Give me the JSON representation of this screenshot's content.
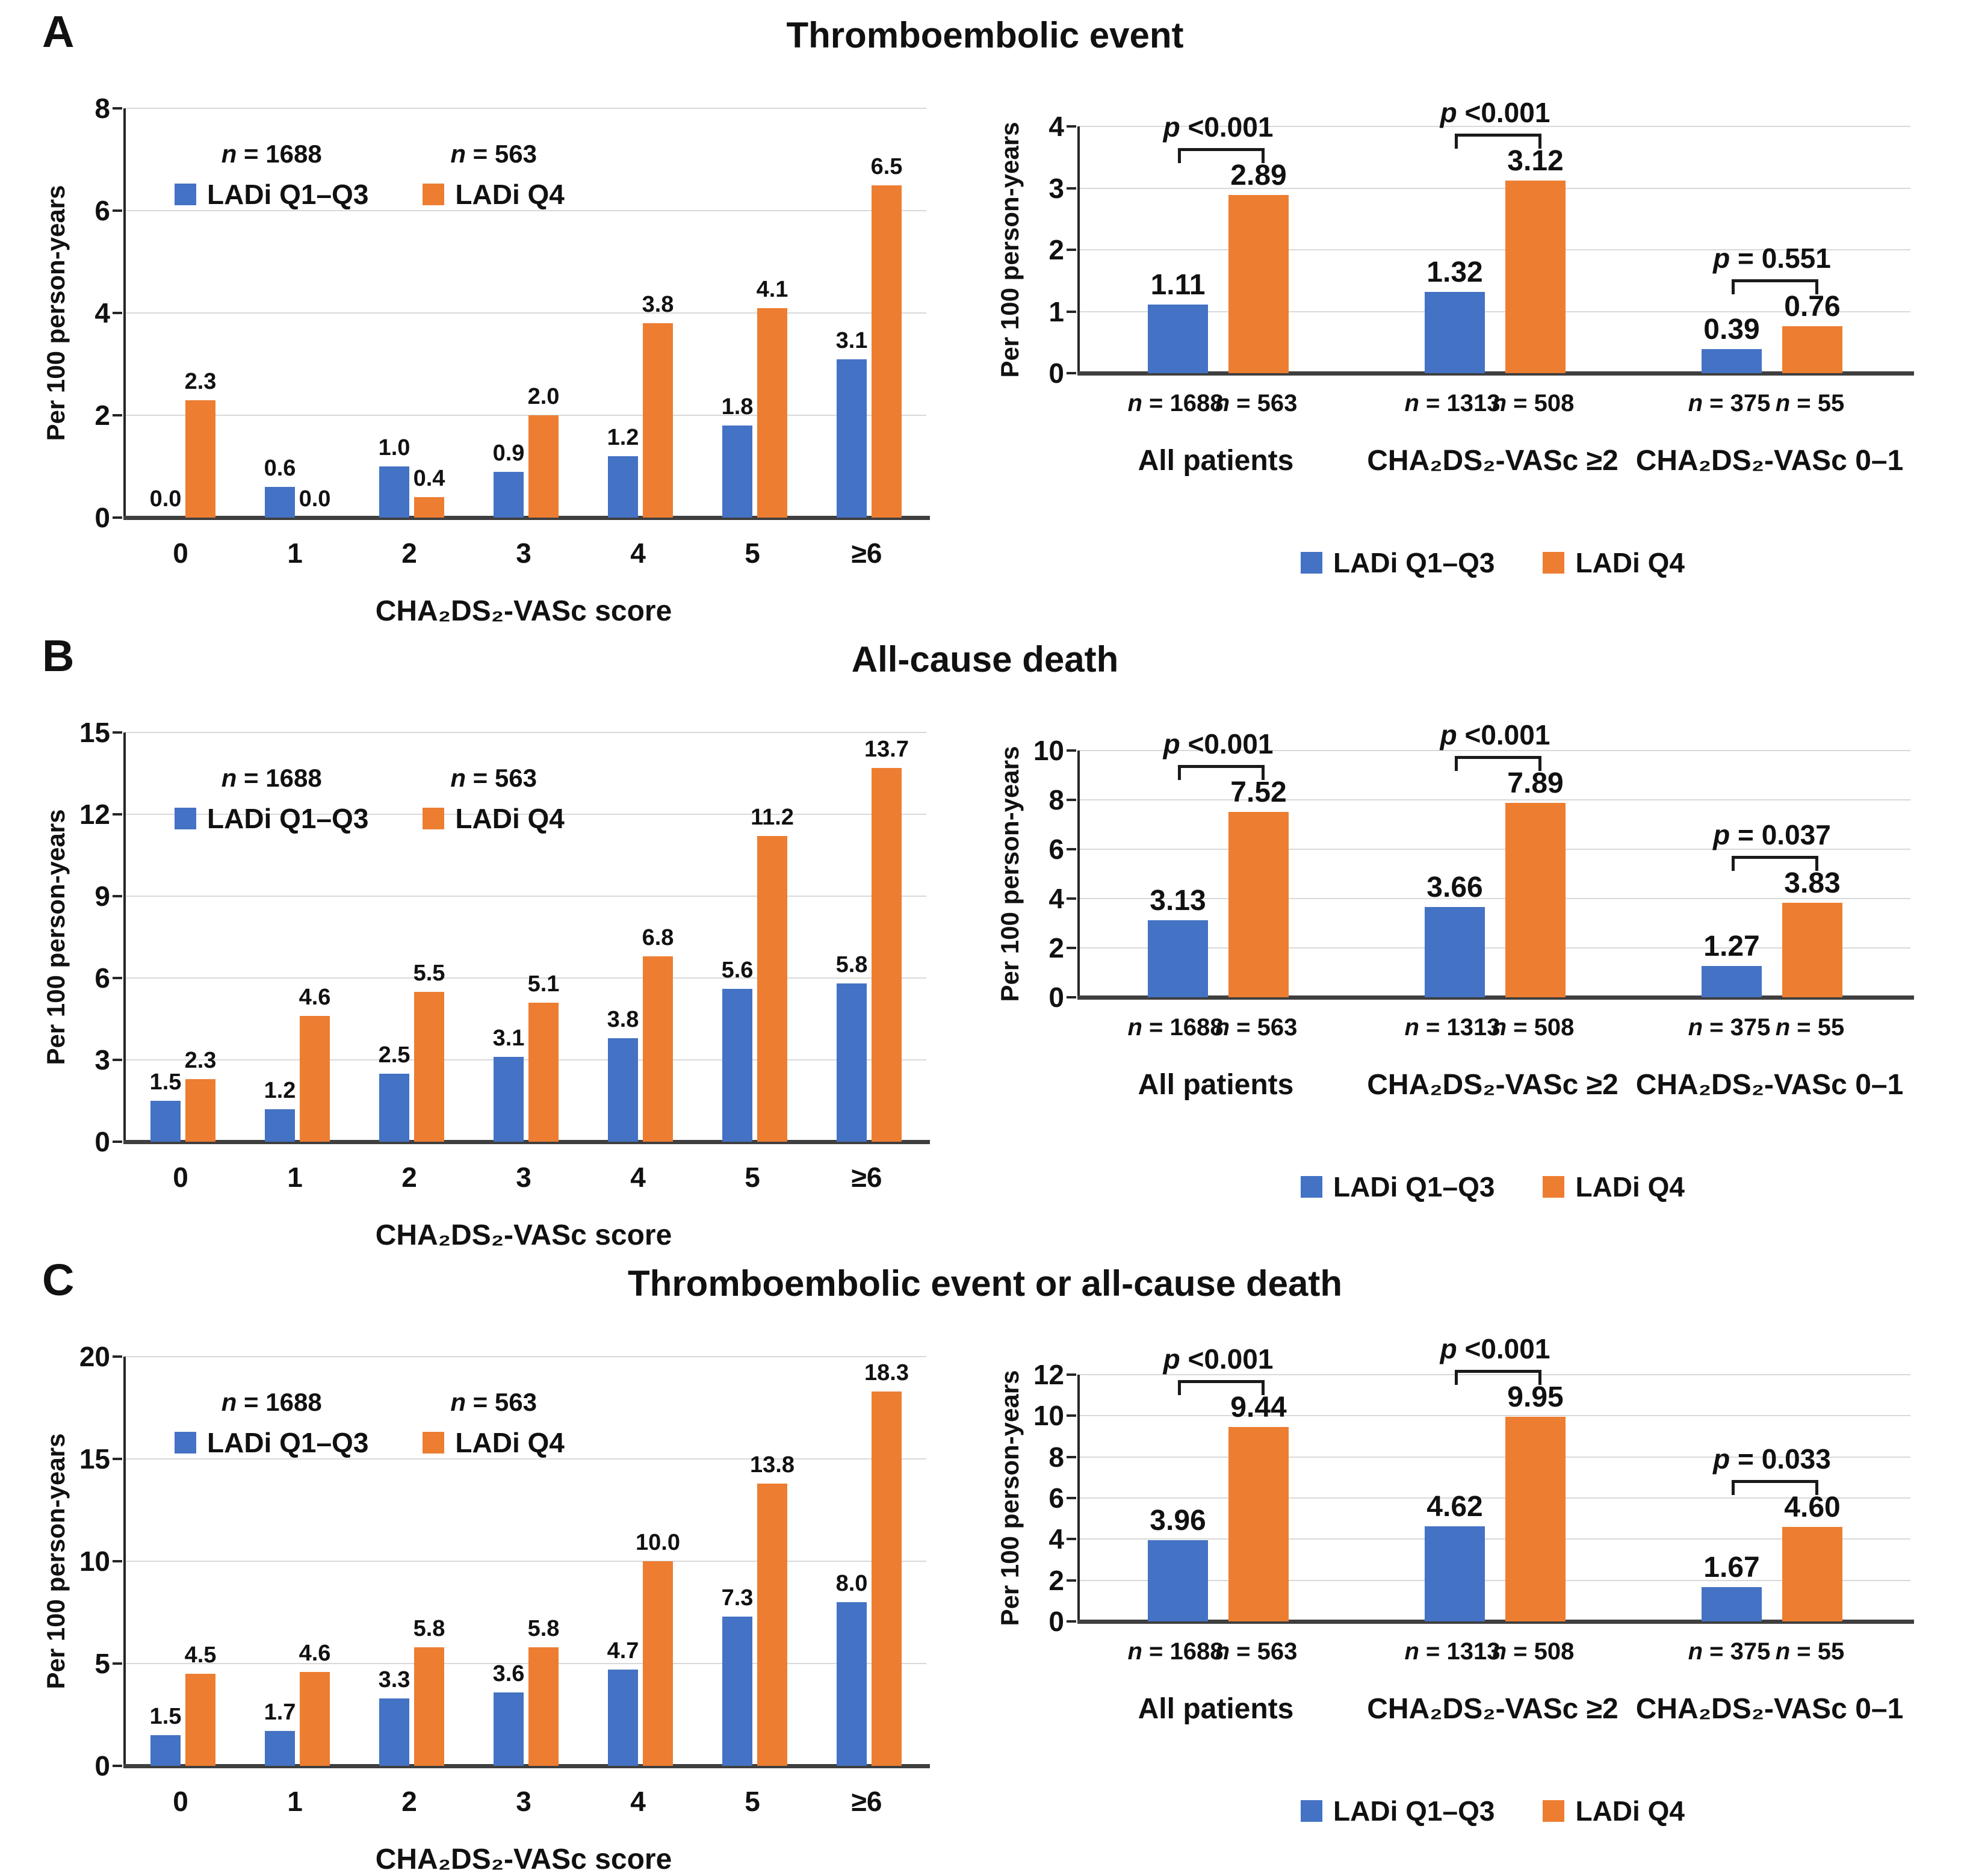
{
  "colors": {
    "blue": "#4472C4",
    "orange": "#ED7D31",
    "grid": "#D9D9D9",
    "axis": "#262626",
    "baseline": "#3F3F3F",
    "text": "#111111"
  },
  "panels": [
    {
      "letter": "A",
      "title": "Thromboembolic event"
    },
    {
      "letter": "B",
      "title": "All-cause death"
    },
    {
      "letter": "C",
      "title": "Thromboembolic event or all-cause death"
    }
  ],
  "chart_data": [
    {
      "kind": "score",
      "type": "bar",
      "panel": "A",
      "title": "Thromboembolic event",
      "ylabel": "Per 100 person-years",
      "xlabel": "CHA₂DS₂-VASc score",
      "categories": [
        "0",
        "1",
        "2",
        "3",
        "4",
        "5",
        "≥6"
      ],
      "ylim": [
        0,
        8
      ],
      "yticks": [
        0,
        2,
        4,
        6,
        8
      ],
      "label_decimals": 1,
      "grid": true,
      "legend_position": "top-inside",
      "legend_n": [
        "n = 1688",
        "n = 563"
      ],
      "series": [
        {
          "name": "LADi Q1–Q3",
          "values": [
            0.0,
            0.6,
            1.0,
            0.9,
            1.2,
            1.8,
            3.1
          ]
        },
        {
          "name": "LADi Q4",
          "values": [
            2.3,
            0.0,
            0.4,
            2.0,
            3.8,
            4.1,
            6.5
          ]
        }
      ]
    },
    {
      "kind": "group",
      "type": "bar",
      "panel": "A",
      "title": "Thromboembolic event",
      "ylabel": "Per 100 person-years",
      "categories": [
        "All patients",
        "CHA₂DS₂-VASc ≥2",
        "CHA₂DS₂-VASc 0–1"
      ],
      "ylim": [
        0,
        4
      ],
      "yticks": [
        0,
        1,
        2,
        3,
        4
      ],
      "label_decimals": 2,
      "grid": true,
      "legend_position": "bottom",
      "series": [
        {
          "name": "LADi Q1–Q3",
          "values": [
            1.11,
            1.32,
            0.39
          ]
        },
        {
          "name": "LADi Q4",
          "values": [
            2.89,
            3.12,
            0.76
          ]
        }
      ],
      "n_labels": [
        [
          "n = 1688",
          "n = 563"
        ],
        [
          "n = 1313",
          "n = 508"
        ],
        [
          "n = 375",
          "n = 55"
        ]
      ],
      "p_labels": [
        "p <0.001",
        "p <0.001",
        "p = 0.551"
      ]
    },
    {
      "kind": "score",
      "type": "bar",
      "panel": "B",
      "title": "All-cause death",
      "ylabel": "Per 100 person-years",
      "xlabel": "CHA₂DS₂-VASc score",
      "categories": [
        "0",
        "1",
        "2",
        "3",
        "4",
        "5",
        "≥6"
      ],
      "ylim": [
        0,
        15
      ],
      "yticks": [
        0,
        3,
        6,
        9,
        12,
        15
      ],
      "label_decimals": 1,
      "grid": true,
      "legend_position": "top-inside",
      "legend_n": [
        "n = 1688",
        "n = 563"
      ],
      "series": [
        {
          "name": "LADi Q1–Q3",
          "values": [
            1.5,
            1.2,
            2.5,
            3.1,
            3.8,
            5.6,
            5.8
          ]
        },
        {
          "name": "LADi Q4",
          "values": [
            2.3,
            4.6,
            5.5,
            5.1,
            6.8,
            11.2,
            13.7
          ]
        }
      ]
    },
    {
      "kind": "group",
      "type": "bar",
      "panel": "B",
      "title": "All-cause death",
      "ylabel": "Per 100 person-years",
      "categories": [
        "All patients",
        "CHA₂DS₂-VASc ≥2",
        "CHA₂DS₂-VASc 0–1"
      ],
      "ylim": [
        0,
        10
      ],
      "yticks": [
        0,
        2,
        4,
        6,
        8,
        10
      ],
      "label_decimals": 2,
      "grid": true,
      "legend_position": "bottom",
      "series": [
        {
          "name": "LADi Q1–Q3",
          "values": [
            3.13,
            3.66,
            1.27
          ]
        },
        {
          "name": "LADi Q4",
          "values": [
            7.52,
            7.89,
            3.83
          ]
        }
      ],
      "n_labels": [
        [
          "n = 1688",
          "n = 563"
        ],
        [
          "n = 1313",
          "n = 508"
        ],
        [
          "n = 375",
          "n = 55"
        ]
      ],
      "p_labels": [
        "p <0.001",
        "p <0.001",
        "p = 0.037"
      ]
    },
    {
      "kind": "score",
      "type": "bar",
      "panel": "C",
      "title": "Thromboembolic event or all-cause death",
      "ylabel": "Per 100 person-years",
      "xlabel": "CHA₂DS₂-VASc score",
      "categories": [
        "0",
        "1",
        "2",
        "3",
        "4",
        "5",
        "≥6"
      ],
      "ylim": [
        0,
        20
      ],
      "yticks": [
        0,
        5,
        10,
        15,
        20
      ],
      "label_decimals": 1,
      "grid": true,
      "legend_position": "top-inside",
      "legend_n": [
        "n = 1688",
        "n = 563"
      ],
      "series": [
        {
          "name": "LADi Q1–Q3",
          "values": [
            1.5,
            1.7,
            3.3,
            3.6,
            4.7,
            7.3,
            8.0
          ]
        },
        {
          "name": "LADi Q4",
          "values": [
            4.5,
            4.6,
            5.8,
            5.8,
            10.0,
            13.8,
            18.3
          ]
        }
      ]
    },
    {
      "kind": "group",
      "type": "bar",
      "panel": "C",
      "title": "Thromboembolic event or all-cause death",
      "ylabel": "Per 100 person-years",
      "categories": [
        "All patients",
        "CHA₂DS₂-VASc ≥2",
        "CHA₂DS₂-VASc 0–1"
      ],
      "ylim": [
        0,
        12
      ],
      "yticks": [
        0,
        2,
        4,
        6,
        8,
        10,
        12
      ],
      "label_decimals": 2,
      "grid": true,
      "legend_position": "bottom",
      "series": [
        {
          "name": "LADi Q1–Q3",
          "values": [
            3.96,
            4.62,
            1.67
          ]
        },
        {
          "name": "LADi Q4",
          "values": [
            9.44,
            9.95,
            4.6
          ]
        }
      ],
      "n_labels": [
        [
          "n = 1688",
          "n = 563"
        ],
        [
          "n = 1313",
          "n = 508"
        ],
        [
          "n = 375",
          "n = 55"
        ]
      ],
      "p_labels": [
        "p <0.001",
        "p <0.001",
        "p = 0.033"
      ]
    }
  ]
}
